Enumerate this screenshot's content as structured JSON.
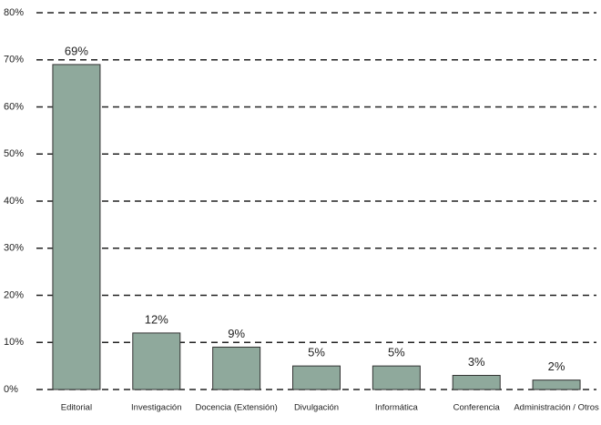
{
  "chart_data": {
    "type": "bar",
    "categories": [
      "Editorial",
      "Investigación",
      "Docencia (Extensión)",
      "Divulgación",
      "Informática",
      "Conferencia",
      "Administración / Otros"
    ],
    "values": [
      69,
      12,
      9,
      5,
      5,
      3,
      2
    ],
    "value_labels": [
      "69%",
      "12%",
      "9%",
      "5%",
      "5%",
      "3%",
      "2%"
    ],
    "color": "#8fa99c",
    "ylim": [
      0,
      80
    ],
    "yticks": [
      {
        "value": 0,
        "label": "0%"
      },
      {
        "value": 10,
        "label": "10%"
      },
      {
        "value": 20,
        "label": "20%"
      },
      {
        "value": 30,
        "label": "30%"
      },
      {
        "value": 40,
        "label": "40%"
      },
      {
        "value": 50,
        "label": "50%"
      },
      {
        "value": 60,
        "label": "60%"
      },
      {
        "value": 70,
        "label": "70%"
      },
      {
        "value": 80,
        "label": "80%"
      }
    ],
    "grid": true
  }
}
